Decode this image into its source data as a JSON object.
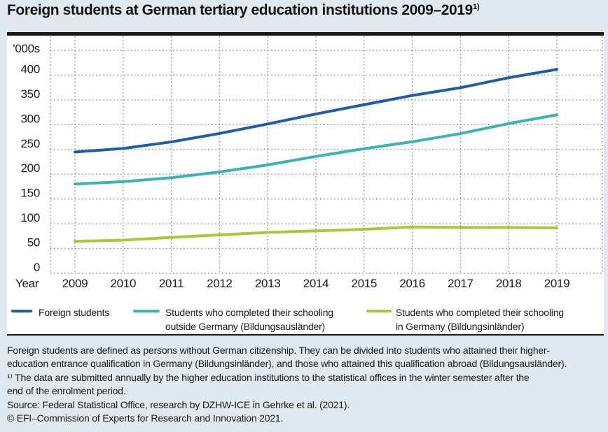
{
  "page": {
    "title": "Foreign students at German tertiary education institutions 2009–2019",
    "title_superscript": "1)"
  },
  "chart_data": {
    "type": "line",
    "title": "Foreign students at German tertiary education institutions 2009–2019 1)",
    "unit_label": "'000s",
    "x_label": "Year",
    "x": [
      2009,
      2010,
      2011,
      2012,
      2013,
      2014,
      2015,
      2016,
      2017,
      2018,
      2019
    ],
    "ylim": [
      0,
      450
    ],
    "ytick_step": 50,
    "ytick_max_labeled": 400,
    "grid": "dotted",
    "legend_position": "bottom",
    "series": [
      {
        "name": "Foreign students",
        "color": "#1c5fa8",
        "values": [
          244.8,
          252.0,
          265.3,
          282.2,
          301.4,
          321.6,
          340.3,
          358.9,
          374.6,
          394.7,
          411.6
        ]
      },
      {
        "name": "Students who completed their schooling\noutside Germany (Bildungsausländer)",
        "color": "#39b4b5",
        "values": [
          180.2,
          185.0,
          192.9,
          204.6,
          218.8,
          235.9,
          251.5,
          265.5,
          282.0,
          302.2,
          319.9
        ]
      },
      {
        "name": "Students who completed their schooling\nin Germany (Bildungsinländer)",
        "color": "#a6c93c",
        "values": [
          64.6,
          67.0,
          72.4,
          77.6,
          82.6,
          85.7,
          88.8,
          93.4,
          92.6,
          92.5,
          91.7
        ]
      }
    ]
  },
  "footer": {
    "lines": [
      "Foreign students are defined as persons without German citizenship. They can be divided into students who attained their higher-",
      "education entrance qualification in Germany (Bildungsinländer), and those who attained this qualification abroad (Bildungsausländer).",
      "¹⁾ The data are submitted annually by the higher education institutions to the statistical offices in the winter semester after the",
      "end of the enrolment period.",
      "Source: Federal Statistical Office, research by DZHW-ICE in Gehrke et al. (2021).",
      "© EFI–Commission of Experts for Research and Innovation 2021."
    ]
  }
}
